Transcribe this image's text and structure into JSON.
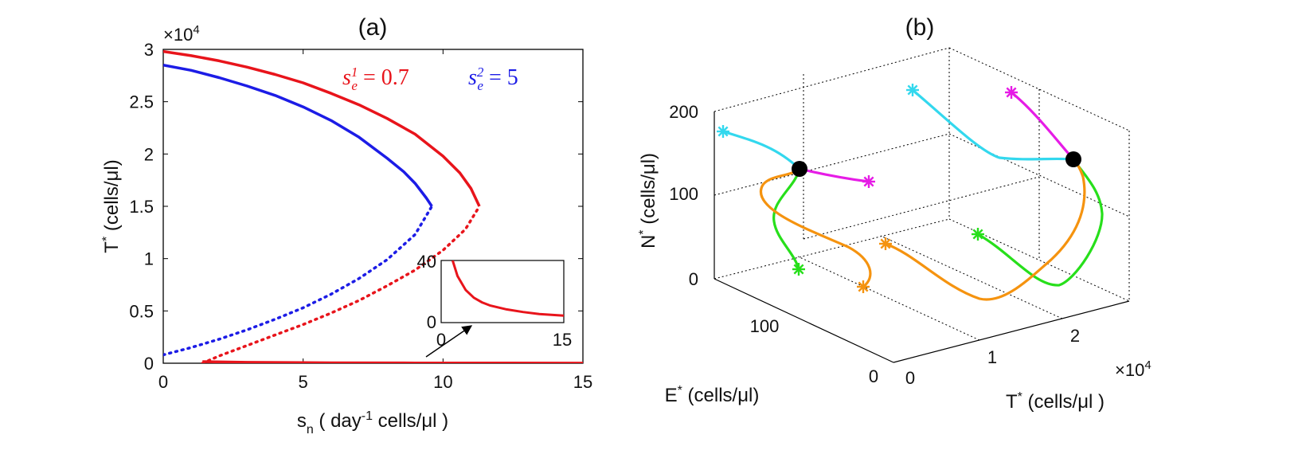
{
  "chart_data": [
    {
      "panel": "a",
      "type": "line",
      "title": "(a)",
      "xlabel": "s_n ( day^-1 cells/μl )",
      "xlabel_parts": {
        "main": "s",
        "sub": "n",
        "pre": " ( day",
        "sup": "-1",
        "post": " cells/μl )"
      },
      "ylabel_parts": {
        "main": "T",
        "sup": "*",
        "post": " (cells/μl)"
      },
      "xlim": [
        0,
        15
      ],
      "ylim": [
        0,
        30000
      ],
      "x_ticks": [
        "0",
        "5",
        "10",
        "15"
      ],
      "y_ticks": [
        "0",
        "0.5",
        "1",
        "1.5",
        "2",
        "2.5",
        "3"
      ],
      "y_exponent": {
        "base": "×10",
        "exp": "4"
      },
      "legend": [
        {
          "label_main": "s",
          "label_sub": "e",
          "label_sup": "1",
          "label_rest": " = 0.7",
          "color": "#e8141b"
        },
        {
          "label_main": "s",
          "label_sub": "e",
          "label_sup": "2",
          "label_rest": " = 5",
          "color": "#1c1ce6"
        }
      ],
      "series": [
        {
          "name": "s_e^1 = 0.7 stable upper branch",
          "color": "#e8141b",
          "style": "solid",
          "x": [
            0,
            1,
            2,
            3,
            4,
            5,
            6,
            7,
            8,
            9,
            10,
            10.6,
            11,
            11.3
          ],
          "y": [
            29800,
            29400,
            28900,
            28300,
            27600,
            26800,
            25800,
            24700,
            23400,
            21900,
            19800,
            18200,
            16700,
            15000
          ]
        },
        {
          "name": "s_e^1 = 0.7 unstable branch",
          "color": "#e8141b",
          "style": "dotted",
          "x": [
            1.4,
            2,
            3,
            4,
            5,
            6,
            7,
            8,
            9,
            10,
            10.8,
            11.3
          ],
          "y": [
            0,
            700,
            1700,
            2700,
            3700,
            4800,
            6000,
            7400,
            8900,
            10800,
            12800,
            15000
          ]
        },
        {
          "name": "s_e^1 = 0.7 tumor-free branch",
          "color": "#e8141b",
          "style": "solid",
          "x": [
            1.4,
            3,
            6,
            9,
            12,
            15
          ],
          "y": [
            150,
            80,
            40,
            25,
            15,
            10
          ]
        },
        {
          "name": "s_e^2 = 5 stable upper branch",
          "color": "#1c1ce6",
          "style": "solid",
          "x": [
            0,
            1,
            2,
            3,
            4,
            5,
            6,
            7,
            8,
            8.6,
            9,
            9.4,
            9.6
          ],
          "y": [
            28500,
            28000,
            27300,
            26500,
            25600,
            24500,
            23200,
            21600,
            19600,
            18300,
            17200,
            15800,
            15000
          ]
        },
        {
          "name": "s_e^2 = 5 unstable branch",
          "color": "#1c1ce6",
          "style": "dotted",
          "x": [
            0,
            1,
            2,
            3,
            4,
            5,
            6,
            7,
            8,
            9,
            9.6
          ],
          "y": [
            800,
            1500,
            2300,
            3200,
            4200,
            5300,
            6600,
            8100,
            9900,
            12300,
            15000
          ]
        }
      ],
      "inset": {
        "xlim": [
          0,
          15
        ],
        "ylim": [
          0,
          40
        ],
        "x_ticks": [
          "0",
          "15"
        ],
        "y_ticks": [
          "0",
          "40"
        ],
        "series": {
          "color": "#e8141b",
          "x": [
            1.4,
            2,
            3,
            4,
            5,
            6,
            8,
            10,
            12,
            15
          ],
          "y": [
            40,
            30,
            21,
            16,
            13,
            11,
            8.5,
            6.8,
            5.5,
            4.5
          ]
        }
      }
    },
    {
      "panel": "b",
      "type": "line",
      "title": "(b)",
      "projection": "3d",
      "x_axis": {
        "label_main": "T",
        "label_sup": "*",
        "label_post": " (cells/μl )",
        "ticks": [
          "0",
          "1",
          "2"
        ],
        "lim": [
          0,
          25000
        ],
        "exponent": {
          "base": "×10",
          "exp": "4"
        }
      },
      "y_axis": {
        "label_main": "E",
        "label_sup": "*",
        "label_post": " (cells/μl)",
        "ticks": [
          "0",
          "100"
        ],
        "lim": [
          0,
          200
        ]
      },
      "z_axis": {
        "label_main": "N",
        "label_sup": "*",
        "label_post": " (cells/μl)",
        "ticks": [
          "0",
          "100",
          "200"
        ],
        "lim": [
          0,
          200
        ]
      },
      "equilibria": [
        {
          "name": "left equilibrium",
          "T": 0,
          "E": 100,
          "N": 130
        },
        {
          "name": "right equilibrium",
          "T": 23000,
          "E": 100,
          "N": 125
        }
      ],
      "trajectories": [
        {
          "color": "#33d8ee",
          "group": "left",
          "points": [
            [
              0,
              130,
              200
            ],
            [
              0,
              100,
              130
            ]
          ]
        },
        {
          "color": "#e61ce6",
          "group": "left",
          "points": [
            [
              4500,
              120,
              140
            ],
            [
              0,
              100,
              130
            ]
          ]
        },
        {
          "color": "#27df1b",
          "group": "left",
          "points": [
            [
              500,
              110,
              10
            ],
            [
              0,
              100,
              130
            ]
          ]
        },
        {
          "color": "#f5930f",
          "group": "left",
          "points": [
            [
              2000,
              115,
              5
            ],
            [
              0,
              100,
              130
            ]
          ]
        },
        {
          "color": "#33d8ee",
          "group": "right",
          "points": [
            [
              15000,
              180,
              200
            ],
            [
              23000,
              100,
              125
            ]
          ]
        },
        {
          "color": "#e61ce6",
          "group": "right",
          "points": [
            [
              21000,
              160,
              210
            ],
            [
              23000,
              100,
              125
            ]
          ]
        },
        {
          "color": "#27df1b",
          "group": "right",
          "points": [
            [
              13000,
              130,
              40
            ],
            [
              23000,
              100,
              125
            ]
          ]
        },
        {
          "color": "#f5930f",
          "group": "right",
          "points": [
            [
              9000,
              110,
              30
            ],
            [
              23000,
              100,
              125
            ]
          ]
        }
      ]
    }
  ]
}
